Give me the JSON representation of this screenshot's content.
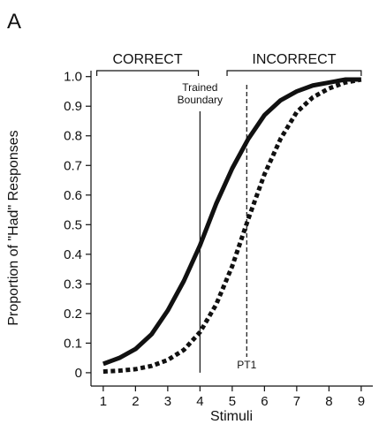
{
  "panel_label": "A",
  "chart_data": {
    "type": "line",
    "xlabel": "Stimuli",
    "ylabel": "Proportion of \"Had\" Responses",
    "x": [
      1,
      1.5,
      2,
      2.5,
      3,
      3.5,
      4,
      4.5,
      5,
      5.5,
      6,
      6.5,
      7,
      7.5,
      8,
      8.5,
      9
    ],
    "series": [
      {
        "color": "#111111",
        "style": "solid",
        "values": [
          0.03,
          0.05,
          0.08,
          0.13,
          0.21,
          0.31,
          0.43,
          0.57,
          0.69,
          0.79,
          0.87,
          0.92,
          0.95,
          0.97,
          0.98,
          0.99,
          0.99
        ]
      },
      {
        "color": "#111111",
        "style": "dotted",
        "values": [
          0.004,
          0.007,
          0.012,
          0.023,
          0.043,
          0.077,
          0.137,
          0.23,
          0.36,
          0.52,
          0.67,
          0.79,
          0.88,
          0.93,
          0.96,
          0.98,
          0.99
        ]
      }
    ],
    "xlim": [
      0.62,
      9.36
    ],
    "ylim": [
      -0.045,
      1.02
    ],
    "xticks": [
      1,
      2,
      3,
      4,
      5,
      6,
      7,
      8,
      9
    ],
    "yticks": [
      0,
      0.1,
      0.2,
      0.3,
      0.4,
      0.5,
      0.6,
      0.7,
      0.8,
      0.9,
      {
        "value": 1,
        "label": "1.0"
      }
    ],
    "reference_lines": [
      {
        "x": 4,
        "label": "Trained Boundary",
        "style": "solid"
      },
      {
        "x": 5.45,
        "label": "PT1",
        "style": "dashed"
      }
    ],
    "brackets": [
      {
        "label": "CORRECT",
        "from": 0.8,
        "to": 3.95
      },
      {
        "label": "INCORRECT",
        "from": 4.84,
        "to": 9
      }
    ]
  }
}
